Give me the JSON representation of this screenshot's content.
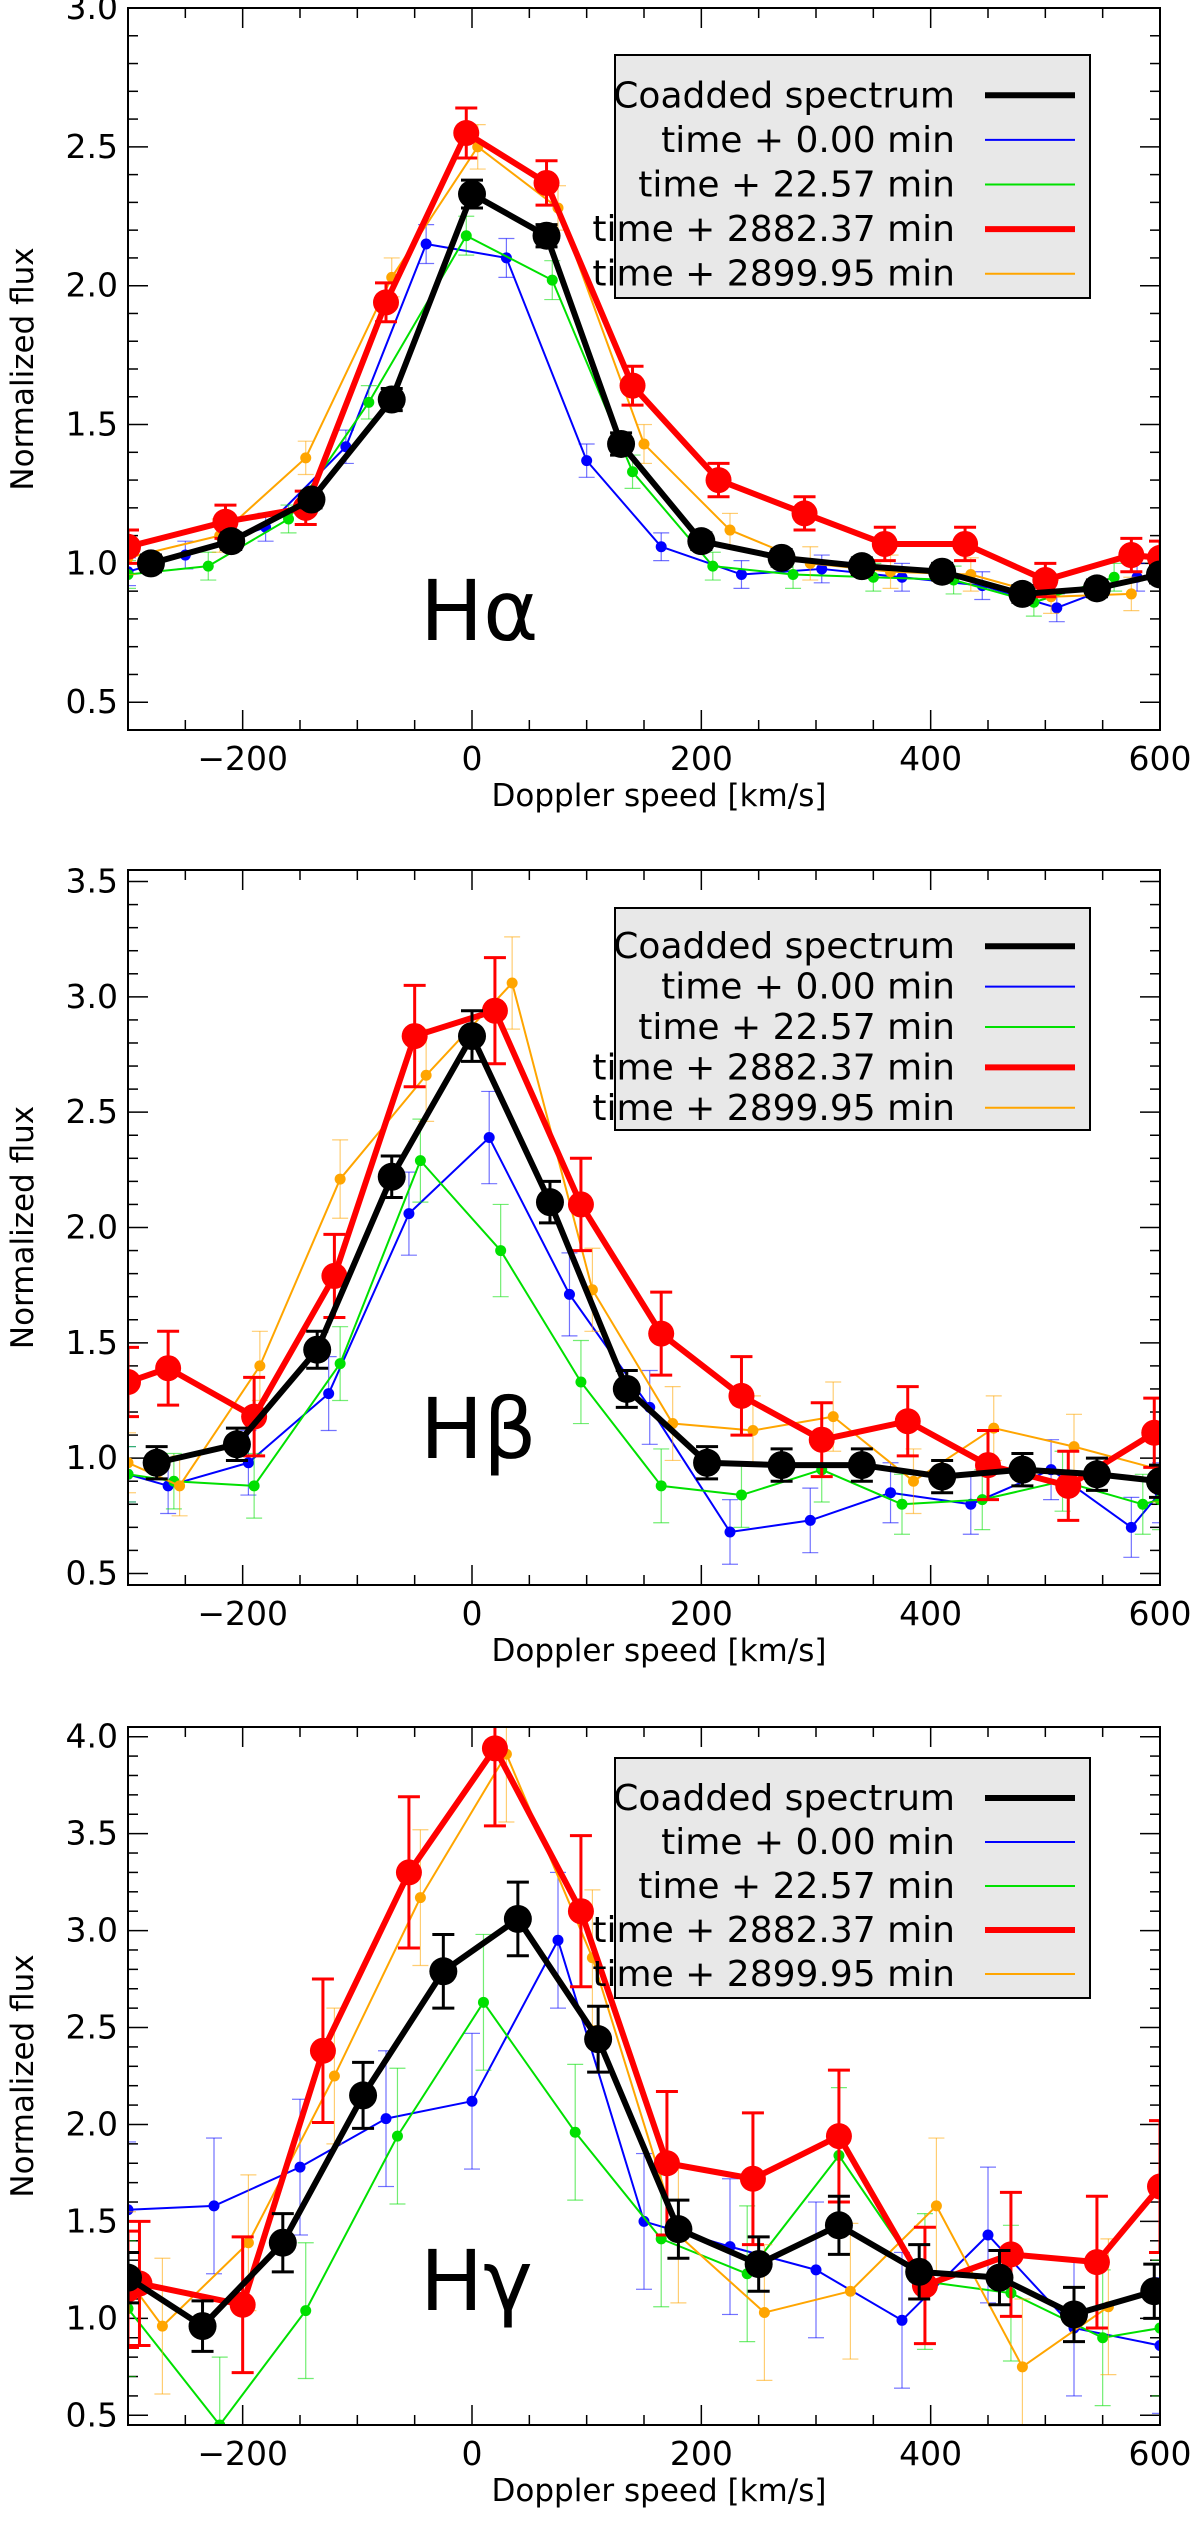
{
  "chart_data": [
    {
      "type": "line",
      "title": "",
      "line_label": "Hα",
      "xlabel": "Doppler speed [km/s]",
      "ylabel": "Normalized flux",
      "xlim": [
        -300,
        600
      ],
      "ylim": [
        0.4,
        3.0
      ],
      "xticks": [
        -200,
        0,
        200,
        400,
        600
      ],
      "yticks": [
        0.5,
        1.0,
        1.5,
        2.0,
        2.5,
        3.0
      ],
      "legend_position": "top-right",
      "series": [
        {
          "name": "Coadded spectrum",
          "color": "#000000",
          "style": "thick-big",
          "x": [
            -280,
            -210,
            -140,
            -70,
            0,
            65,
            130,
            200,
            270,
            340,
            410,
            480,
            545,
            600
          ],
          "y": [
            1.0,
            1.08,
            1.23,
            1.59,
            2.33,
            2.18,
            1.43,
            1.08,
            1.02,
            0.99,
            0.97,
            0.89,
            0.91,
            0.96
          ],
          "err": [
            0.03,
            0.03,
            0.03,
            0.04,
            0.05,
            0.04,
            0.04,
            0.03,
            0.03,
            0.03,
            0.03,
            0.03,
            0.03,
            0.03
          ]
        },
        {
          "name": "time +    0.00 min",
          "color": "#0000ff",
          "style": "thin",
          "x": [
            -300,
            -250,
            -180,
            -110,
            -40,
            30,
            100,
            165,
            235,
            305,
            375,
            445,
            510,
            580
          ],
          "y": [
            0.97,
            1.03,
            1.13,
            1.42,
            2.15,
            2.1,
            1.37,
            1.06,
            0.96,
            0.98,
            0.95,
            0.92,
            0.84,
            0.95
          ],
          "err": [
            0.05,
            0.05,
            0.05,
            0.06,
            0.07,
            0.07,
            0.06,
            0.05,
            0.05,
            0.05,
            0.05,
            0.05,
            0.05,
            0.05
          ]
        },
        {
          "name": "time +   22.57 min",
          "color": "#00e000",
          "style": "thin",
          "x": [
            -300,
            -230,
            -160,
            -90,
            -5,
            70,
            140,
            210,
            280,
            350,
            420,
            490,
            560
          ],
          "y": [
            0.96,
            0.99,
            1.16,
            1.58,
            2.18,
            2.02,
            1.33,
            0.99,
            0.96,
            0.95,
            0.94,
            0.86,
            0.95
          ],
          "err": [
            0.05,
            0.05,
            0.05,
            0.06,
            0.07,
            0.07,
            0.06,
            0.05,
            0.05,
            0.05,
            0.05,
            0.05,
            0.05
          ]
        },
        {
          "name": "time + 2882.37 min",
          "color": "#ff0000",
          "style": "thick",
          "x": [
            -300,
            -215,
            -145,
            -75,
            -5,
            65,
            140,
            215,
            290,
            360,
            430,
            500,
            575,
            600
          ],
          "y": [
            1.06,
            1.15,
            1.2,
            1.94,
            2.55,
            2.37,
            1.64,
            1.3,
            1.18,
            1.07,
            1.07,
            0.94,
            1.03,
            1.02
          ],
          "err": [
            0.06,
            0.06,
            0.06,
            0.07,
            0.09,
            0.08,
            0.07,
            0.06,
            0.06,
            0.06,
            0.06,
            0.06,
            0.06,
            0.06
          ]
        },
        {
          "name": "time + 2899.95 min",
          "color": "#ffa500",
          "style": "thin",
          "x": [
            -300,
            -220,
            -145,
            -70,
            5,
            75,
            150,
            225,
            295,
            365,
            435,
            505,
            575
          ],
          "y": [
            1.02,
            1.1,
            1.38,
            2.03,
            2.5,
            2.28,
            1.43,
            1.12,
            1.0,
            0.97,
            0.96,
            0.88,
            0.89
          ],
          "err": [
            0.06,
            0.06,
            0.06,
            0.07,
            0.08,
            0.08,
            0.07,
            0.06,
            0.06,
            0.06,
            0.06,
            0.06,
            0.06
          ]
        }
      ]
    },
    {
      "type": "line",
      "title": "",
      "line_label": "Hβ",
      "xlabel": "Doppler speed [km/s]",
      "ylabel": "Normalized flux",
      "xlim": [
        -300,
        600
      ],
      "ylim": [
        0.45,
        3.55
      ],
      "xticks": [
        -200,
        0,
        200,
        400,
        600
      ],
      "yticks": [
        0.5,
        1.0,
        1.5,
        2.0,
        2.5,
        3.0,
        3.5
      ],
      "legend_position": "top-right",
      "series": [
        {
          "name": "Coadded spectrum",
          "color": "#000000",
          "style": "thick-big",
          "x": [
            -275,
            -205,
            -135,
            -70,
            0,
            68,
            135,
            205,
            270,
            340,
            410,
            480,
            545,
            600
          ],
          "y": [
            0.98,
            1.06,
            1.47,
            2.22,
            2.83,
            2.11,
            1.3,
            0.98,
            0.97,
            0.97,
            0.92,
            0.95,
            0.93,
            0.9
          ],
          "err": [
            0.07,
            0.07,
            0.08,
            0.09,
            0.11,
            0.09,
            0.08,
            0.07,
            0.07,
            0.07,
            0.07,
            0.07,
            0.07,
            0.07
          ]
        },
        {
          "name": "time +    0.00 min",
          "color": "#0000ff",
          "style": "thin",
          "x": [
            -300,
            -265,
            -195,
            -125,
            -55,
            15,
            85,
            155,
            225,
            295,
            365,
            435,
            505,
            575,
            600
          ],
          "y": [
            0.93,
            0.88,
            0.98,
            1.28,
            2.06,
            2.39,
            1.71,
            1.22,
            0.68,
            0.73,
            0.85,
            0.8,
            0.95,
            0.7,
            0.85
          ],
          "err": [
            0.12,
            0.12,
            0.14,
            0.16,
            0.18,
            0.2,
            0.18,
            0.16,
            0.14,
            0.14,
            0.13,
            0.13,
            0.13,
            0.13,
            0.13
          ]
        },
        {
          "name": "time +   22.57 min",
          "color": "#00e000",
          "style": "thin",
          "x": [
            -300,
            -260,
            -190,
            -115,
            -45,
            25,
            95,
            165,
            235,
            305,
            375,
            445,
            515,
            585,
            600
          ],
          "y": [
            0.93,
            0.9,
            0.88,
            1.41,
            2.29,
            1.9,
            1.33,
            0.88,
            0.84,
            0.95,
            0.8,
            0.82,
            0.9,
            0.8,
            0.82
          ],
          "err": [
            0.12,
            0.12,
            0.14,
            0.16,
            0.18,
            0.2,
            0.18,
            0.16,
            0.14,
            0.14,
            0.13,
            0.13,
            0.13,
            0.13,
            0.13
          ]
        },
        {
          "name": "time + 2882.37 min",
          "color": "#ff0000",
          "style": "thick",
          "x": [
            -300,
            -265,
            -190,
            -120,
            -50,
            20,
            95,
            165,
            235,
            305,
            380,
            450,
            520,
            595
          ],
          "y": [
            1.33,
            1.39,
            1.18,
            1.79,
            2.83,
            2.94,
            2.1,
            1.54,
            1.27,
            1.08,
            1.16,
            0.97,
            0.88,
            1.11
          ],
          "err": [
            0.15,
            0.16,
            0.17,
            0.18,
            0.22,
            0.23,
            0.2,
            0.18,
            0.17,
            0.16,
            0.15,
            0.15,
            0.15,
            0.15
          ]
        },
        {
          "name": "time + 2899.95 min",
          "color": "#ffa500",
          "style": "thin",
          "x": [
            -300,
            -255,
            -185,
            -115,
            -40,
            35,
            105,
            175,
            245,
            315,
            385,
            455,
            525,
            600
          ],
          "y": [
            0.98,
            0.88,
            1.4,
            2.21,
            2.66,
            3.06,
            1.73,
            1.15,
            1.12,
            1.18,
            0.9,
            1.13,
            1.05,
            0.95
          ],
          "err": [
            0.13,
            0.13,
            0.15,
            0.17,
            0.2,
            0.2,
            0.18,
            0.16,
            0.15,
            0.15,
            0.14,
            0.14,
            0.14,
            0.14
          ]
        }
      ]
    },
    {
      "type": "line",
      "title": "",
      "line_label": "Hγ",
      "xlabel": "Doppler speed [km/s]",
      "ylabel": "Normalized flux",
      "xlim": [
        -300,
        600
      ],
      "ylim": [
        0.45,
        4.05
      ],
      "xticks": [
        -200,
        0,
        200,
        400,
        600
      ],
      "yticks": [
        0.5,
        1.0,
        1.5,
        2.0,
        2.5,
        3.0,
        3.5,
        4.0
      ],
      "legend_position": "top-right",
      "series": [
        {
          "name": "Coadded spectrum",
          "color": "#000000",
          "style": "thick-big",
          "x": [
            -300,
            -235,
            -165,
            -95,
            -25,
            40,
            110,
            180,
            250,
            320,
            390,
            460,
            525,
            595
          ],
          "y": [
            1.21,
            0.96,
            1.39,
            2.15,
            2.79,
            3.06,
            2.44,
            1.46,
            1.28,
            1.48,
            1.24,
            1.21,
            1.02,
            1.14
          ],
          "err": [
            0.13,
            0.13,
            0.15,
            0.17,
            0.19,
            0.19,
            0.17,
            0.15,
            0.14,
            0.15,
            0.14,
            0.14,
            0.14,
            0.14
          ]
        },
        {
          "name": "time +    0.00 min",
          "color": "#0000ff",
          "style": "thin",
          "x": [
            -300,
            -225,
            -150,
            -75,
            0,
            75,
            150,
            225,
            300,
            375,
            450,
            525,
            600
          ],
          "y": [
            1.56,
            1.58,
            1.78,
            2.03,
            2.12,
            2.95,
            1.5,
            1.37,
            1.25,
            0.99,
            1.43,
            0.95,
            0.86
          ],
          "err": [
            0.35,
            0.35,
            0.35,
            0.35,
            0.35,
            0.35,
            0.35,
            0.35,
            0.35,
            0.35,
            0.35,
            0.35,
            0.35
          ]
        },
        {
          "name": "time +   22.57 min",
          "color": "#00e000",
          "style": "thin",
          "x": [
            -300,
            -220,
            -145,
            -65,
            10,
            90,
            165,
            240,
            320,
            395,
            470,
            550,
            600
          ],
          "y": [
            1.05,
            0.45,
            1.04,
            1.94,
            2.63,
            1.96,
            1.41,
            1.23,
            1.84,
            1.19,
            1.13,
            0.9,
            0.95
          ],
          "err": [
            0.35,
            0.35,
            0.35,
            0.35,
            0.35,
            0.35,
            0.35,
            0.35,
            0.35,
            0.35,
            0.35,
            0.35,
            0.35
          ]
        },
        {
          "name": "time + 2882.37 min",
          "color": "#ff0000",
          "style": "thick",
          "x": [
            -300,
            -290,
            -200,
            -130,
            -55,
            20,
            95,
            170,
            245,
            320,
            395,
            470,
            545,
            600
          ],
          "y": [
            1.15,
            1.18,
            1.07,
            2.38,
            3.3,
            3.94,
            3.1,
            1.8,
            1.72,
            1.94,
            1.17,
            1.33,
            1.29,
            1.68
          ],
          "err": [
            0.3,
            0.32,
            0.35,
            0.37,
            0.39,
            0.4,
            0.39,
            0.37,
            0.34,
            0.34,
            0.3,
            0.32,
            0.34,
            0.34
          ]
        },
        {
          "name": "time + 2899.95 min",
          "color": "#ffa500",
          "style": "thin",
          "x": [
            -300,
            -270,
            -195,
            -120,
            -45,
            30,
            105,
            180,
            255,
            330,
            405,
            480,
            555
          ],
          "y": [
            1.2,
            0.96,
            1.39,
            2.25,
            3.17,
            3.91,
            2.86,
            1.43,
            1.03,
            1.14,
            1.58,
            0.75,
            1.06
          ],
          "err": [
            0.35,
            0.35,
            0.35,
            0.35,
            0.35,
            0.35,
            0.35,
            0.35,
            0.35,
            0.35,
            0.35,
            0.35,
            0.35
          ]
        }
      ]
    }
  ]
}
